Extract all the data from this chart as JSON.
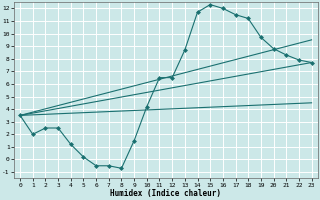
{
  "title": "",
  "xlabel": "Humidex (Indice chaleur)",
  "background_color": "#cce8e8",
  "grid_color": "#ffffff",
  "line_color": "#1a7070",
  "xlim": [
    -0.5,
    23.5
  ],
  "ylim": [
    -1.5,
    12.5
  ],
  "xticks": [
    0,
    1,
    2,
    3,
    4,
    5,
    6,
    7,
    8,
    9,
    10,
    11,
    12,
    13,
    14,
    15,
    16,
    17,
    18,
    19,
    20,
    21,
    22,
    23
  ],
  "yticks": [
    -1,
    0,
    1,
    2,
    3,
    4,
    5,
    6,
    7,
    8,
    9,
    10,
    11,
    12
  ],
  "series1_x": [
    0,
    1,
    2,
    3,
    4,
    5,
    6,
    7,
    8,
    9,
    10,
    11,
    12,
    13,
    14,
    15,
    16,
    17,
    18,
    19,
    20,
    21,
    22,
    23
  ],
  "series1_y": [
    3.5,
    2.0,
    2.5,
    2.5,
    1.2,
    0.2,
    -0.5,
    -0.5,
    -0.7,
    1.5,
    4.2,
    6.5,
    6.5,
    8.7,
    11.7,
    12.3,
    12.0,
    11.5,
    11.2,
    9.7,
    8.8,
    8.3,
    7.9,
    7.7
  ],
  "series2_x": [
    0,
    23
  ],
  "series2_y": [
    3.5,
    9.5
  ],
  "series3_x": [
    0,
    23
  ],
  "series3_y": [
    3.5,
    7.7
  ],
  "series4_x": [
    0,
    23
  ],
  "series4_y": [
    3.5,
    4.5
  ]
}
